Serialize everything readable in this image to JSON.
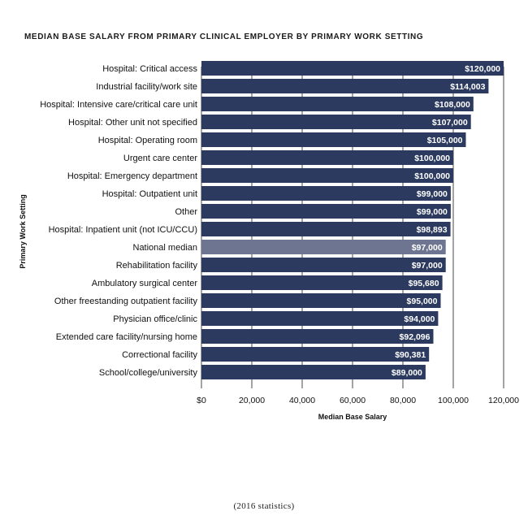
{
  "chart_data": {
    "type": "bar",
    "orientation": "horizontal",
    "title": "MEDIAN BASE SALARY FROM PRIMARY CLINICAL EMPLOYER BY PRIMARY WORK SETTING",
    "xlabel": "Median Base Salary",
    "ylabel": "Primary Work Setting",
    "xlim": [
      0,
      120000
    ],
    "x_ticks": [
      "$0",
      "20,000",
      "40,000",
      "60,000",
      "80,000",
      "100,000",
      "120,000"
    ],
    "categories": [
      "Hospital: Critical access",
      "Industrial facility/work site",
      "Hospital: Intensive care/critical care unit",
      "Hospital: Other unit not specified",
      "Hospital: Operating room",
      "Urgent care center",
      "Hospital: Emergency department",
      "Hospital: Outpatient unit",
      "Other",
      "Hospital: Inpatient unit (not ICU/CCU)",
      "National median",
      "Rehabilitation facility",
      "Ambulatory surgical center",
      "Other freestanding outpatient facility",
      "Physician office/clinic",
      "Extended care facility/nursing home",
      "Correctional facility",
      "School/college/university"
    ],
    "values": [
      120000,
      114003,
      108000,
      107000,
      105000,
      100000,
      100000,
      99000,
      99000,
      98893,
      97000,
      97000,
      95680,
      95000,
      94000,
      92096,
      90381,
      89000
    ],
    "data_labels": [
      "$120,000",
      "$114,003",
      "$108,000",
      "$107,000",
      "$105,000",
      "$100,000",
      "$100,000",
      "$99,000",
      "$99,000",
      "$98,893",
      "$97,000",
      "$97,000",
      "$95,680",
      "$95,000",
      "$94,000",
      "$92,096",
      "$90,381",
      "$89,000"
    ],
    "highlight_category": "National median",
    "grid": "vertical",
    "colors": {
      "bar": "#2b3a5e",
      "highlight": "#6e7590",
      "grid": "#1a1a1a"
    }
  },
  "footnote": "(2016 statistics)"
}
